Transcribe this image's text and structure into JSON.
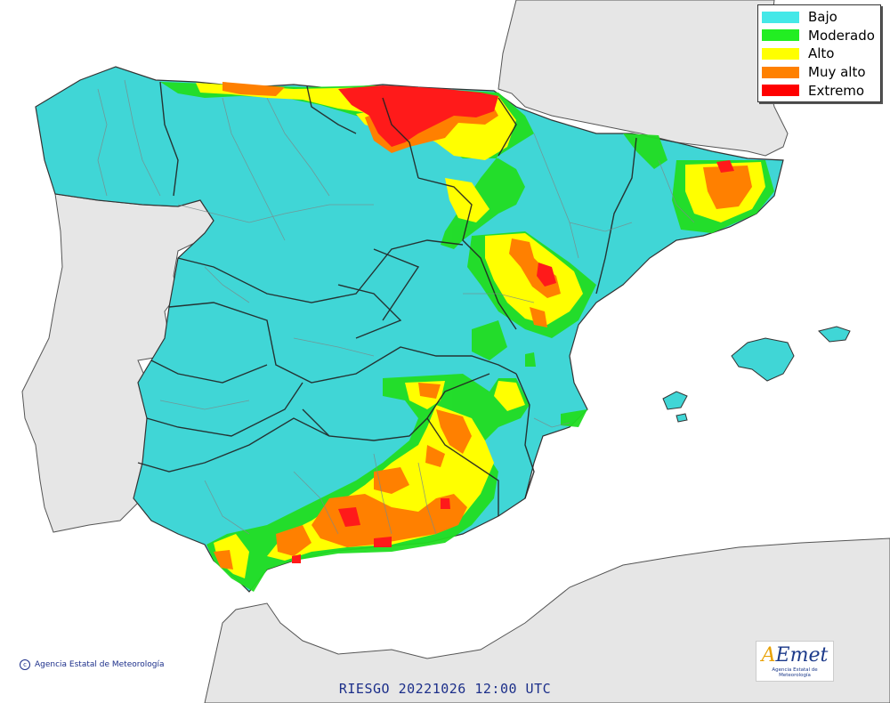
{
  "legend": {
    "items": [
      {
        "label": "Bajo",
        "color": "#44d7d7"
      },
      {
        "label": "Moderado",
        "color": "#22dd22"
      },
      {
        "label": "Alto",
        "color": "#ffff00"
      },
      {
        "label": "Muy alto",
        "color": "#ff8000"
      },
      {
        "label": "Extremo",
        "color": "#ff0000"
      }
    ]
  },
  "map": {
    "land_color": "#40d6d6",
    "neighbor_color": "#e6e6e6",
    "sea_color": "#ffffff"
  },
  "credit": {
    "symbol": "c",
    "text": "Agencia Estatal de Meteorología"
  },
  "footer": {
    "caption": "RIESGO 20221026 12:00 UTC"
  },
  "logo": {
    "wordmark_a": "A",
    "wordmark_rest": "Emet",
    "subtitle": "Agencia Estatal de Meteorología"
  }
}
